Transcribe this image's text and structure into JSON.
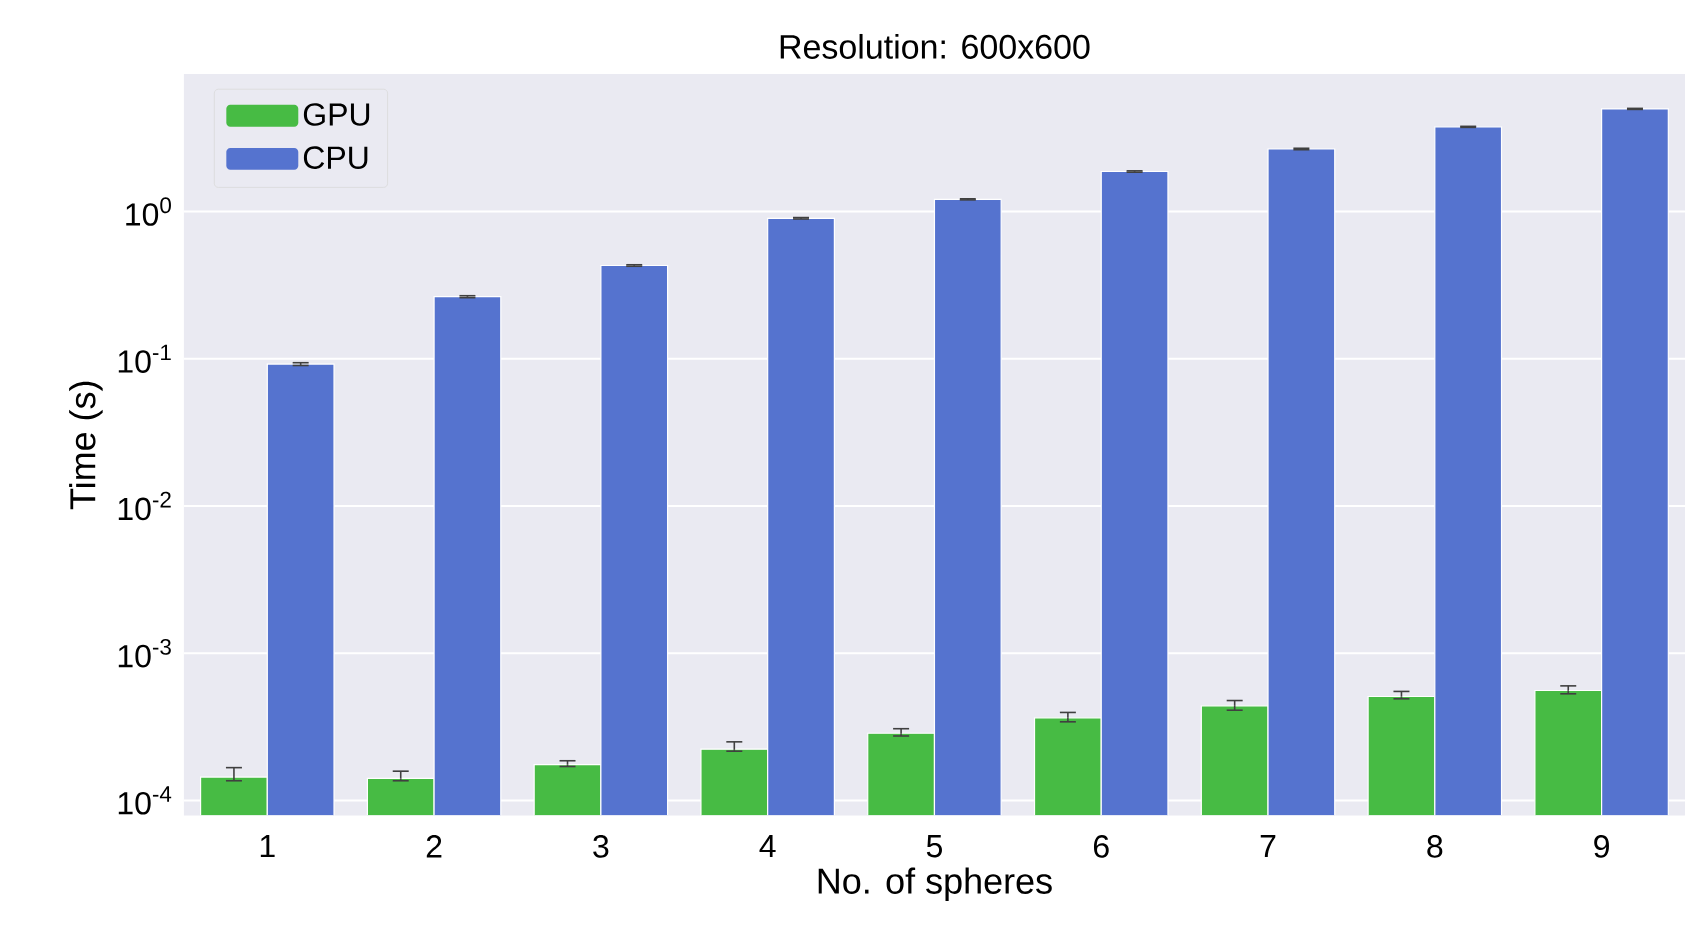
{
  "chart_data": {
    "type": "bar",
    "title": "Resolution: 600x600",
    "xlabel": "No. of spheres",
    "ylabel": "Time (s)",
    "categories": [
      "1",
      "2",
      "3",
      "4",
      "5",
      "6",
      "7",
      "8",
      "9"
    ],
    "series": [
      {
        "name": "GPU",
        "color": "#47bb44",
        "values": [
          0.000144,
          0.000141,
          0.000175,
          0.000223,
          0.000286,
          0.000364,
          0.000439,
          0.000508,
          0.000558
        ],
        "errors": [
          [
            0.000136,
            0.000167
          ],
          [
            0.000136,
            0.000158
          ],
          [
            0.00017,
            0.000186
          ],
          [
            0.000216,
            0.00025
          ],
          [
            0.000274,
            0.000307
          ],
          [
            0.000342,
            0.000396
          ],
          [
            0.00041,
            0.000477
          ],
          [
            0.00049,
            0.00055
          ],
          [
            0.00053,
            0.0006
          ]
        ]
      },
      {
        "name": "CPU",
        "color": "#5573cf",
        "values": [
          0.092,
          0.264,
          0.43,
          0.9,
          1.21,
          1.87,
          2.66,
          3.76,
          4.98
        ],
        "errors": [
          [
            0.09,
            0.094
          ],
          [
            0.26,
            0.268
          ],
          [
            0.425,
            0.435
          ],
          [
            0.89,
            0.91
          ],
          [
            1.2,
            1.22
          ],
          [
            1.85,
            1.89
          ],
          [
            2.63,
            2.69
          ],
          [
            3.73,
            3.79
          ],
          [
            4.94,
            5.02
          ]
        ]
      }
    ],
    "log": "y",
    "ylim": [
      7.9e-05,
      8.6
    ],
    "yticks": [
      {
        "value": 0.0001,
        "label": "10$^{-4}$"
      },
      {
        "value": 0.001,
        "label": "10$^{-3}$"
      },
      {
        "value": 0.01,
        "label": "10$^{-2}$"
      },
      {
        "value": 0.1,
        "label": "10$^{-1}$"
      },
      {
        "value": 1,
        "label": "10$^{0}$"
      }
    ],
    "grid": "y",
    "legend": "top left"
  }
}
